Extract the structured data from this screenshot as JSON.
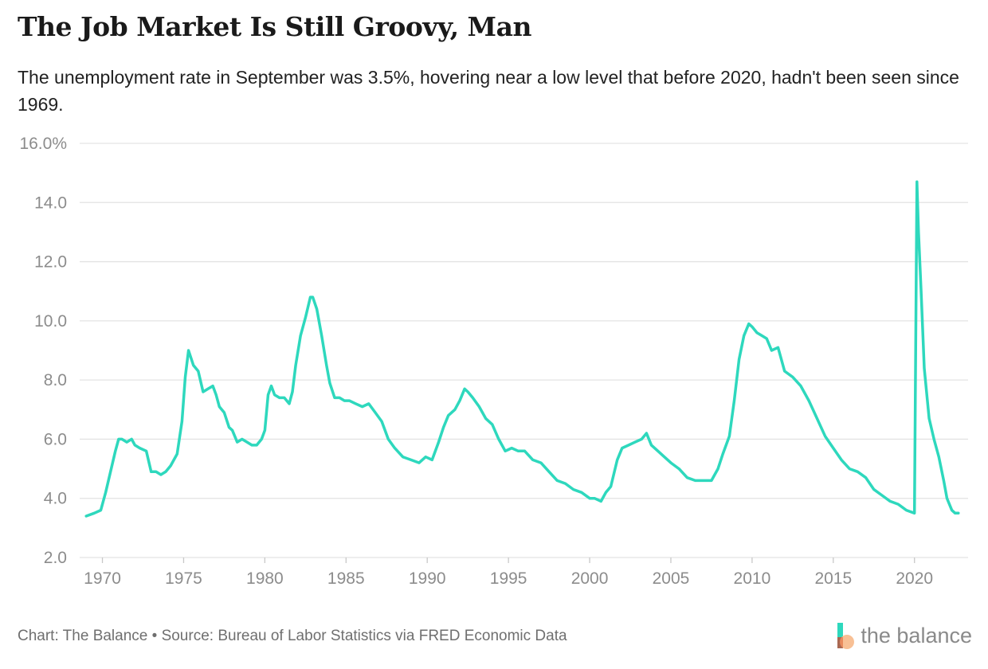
{
  "title": "The Job Market Is Still Groovy, Man",
  "subtitle": "The unemployment rate in September was 3.5%, hovering near a low level that before 2020, hadn't been seen since 1969.",
  "footer": "Chart: The Balance • Source: Bureau of Labor Statistics via FRED Economic Data",
  "logo_text": "the balance",
  "colors": {
    "line": "#2ed8bd",
    "grid": "#e3e3e3",
    "tick": "#8c8c8c"
  },
  "chart_data": {
    "type": "line",
    "title": "The Job Market Is Still Groovy, Man",
    "xlabel": "",
    "ylabel": "",
    "xlim": [
      1968.6,
      2023.3
    ],
    "ylim": [
      2,
      16
    ],
    "y_ticks": [
      2,
      4,
      6,
      8,
      10,
      12,
      14,
      16
    ],
    "y_tick_labels": [
      "2.0",
      "4.0",
      "6.0",
      "8.0",
      "10.0",
      "12.0",
      "14.0",
      "16.0%"
    ],
    "x_ticks": [
      1970,
      1975,
      1980,
      1985,
      1990,
      1995,
      2000,
      2005,
      2010,
      2015,
      2020
    ],
    "x_tick_labels": [
      "1970",
      "1975",
      "1980",
      "1985",
      "1990",
      "1995",
      "2000",
      "2005",
      "2010",
      "2015",
      "2020"
    ],
    "grid": true,
    "series": [
      {
        "name": "Unemployment rate",
        "x": [
          1969.0,
          1969.5,
          1969.9,
          1970.2,
          1970.5,
          1970.8,
          1971.0,
          1971.2,
          1971.5,
          1971.8,
          1972.0,
          1972.3,
          1972.7,
          1973.0,
          1973.3,
          1973.6,
          1973.9,
          1974.2,
          1974.6,
          1974.9,
          1975.1,
          1975.3,
          1975.6,
          1975.9,
          1976.2,
          1976.5,
          1976.8,
          1977.0,
          1977.2,
          1977.5,
          1977.8,
          1978.0,
          1978.3,
          1978.6,
          1978.9,
          1979.2,
          1979.5,
          1979.8,
          1980.0,
          1980.2,
          1980.4,
          1980.6,
          1980.9,
          1981.2,
          1981.5,
          1981.7,
          1981.9,
          1982.2,
          1982.5,
          1982.8,
          1982.95,
          1983.2,
          1983.5,
          1983.8,
          1984.0,
          1984.3,
          1984.6,
          1984.9,
          1985.2,
          1985.6,
          1986.0,
          1986.4,
          1986.8,
          1987.2,
          1987.6,
          1988.0,
          1988.5,
          1989.0,
          1989.5,
          1989.9,
          1990.3,
          1990.7,
          1991.0,
          1991.3,
          1991.7,
          1992.0,
          1992.3,
          1992.5,
          1992.8,
          1993.2,
          1993.6,
          1994.0,
          1994.4,
          1994.8,
          1995.2,
          1995.6,
          1996.0,
          1996.5,
          1997.0,
          1997.5,
          1998.0,
          1998.5,
          1999.0,
          1999.5,
          2000.0,
          2000.3,
          2000.7,
          2001.0,
          2001.3,
          2001.7,
          2002.0,
          2002.4,
          2002.8,
          2003.2,
          2003.5,
          2003.8,
          2004.2,
          2004.6,
          2005.0,
          2005.5,
          2006.0,
          2006.5,
          2007.0,
          2007.5,
          2007.9,
          2008.2,
          2008.6,
          2008.9,
          2009.2,
          2009.5,
          2009.8,
          2010.0,
          2010.3,
          2010.6,
          2010.9,
          2011.2,
          2011.6,
          2012.0,
          2012.5,
          2013.0,
          2013.5,
          2014.0,
          2014.5,
          2015.0,
          2015.5,
          2016.0,
          2016.5,
          2017.0,
          2017.5,
          2018.0,
          2018.5,
          2019.0,
          2019.5,
          2020.0,
          2020.15,
          2020.25,
          2020.4,
          2020.6,
          2020.9,
          2021.2,
          2021.5,
          2021.8,
          2022.0,
          2022.3,
          2022.5,
          2022.7
        ],
        "values": [
          3.4,
          3.5,
          3.6,
          4.2,
          4.9,
          5.6,
          6.0,
          6.0,
          5.9,
          6.0,
          5.8,
          5.7,
          5.6,
          4.9,
          4.9,
          4.8,
          4.9,
          5.1,
          5.5,
          6.6,
          8.1,
          9.0,
          8.5,
          8.3,
          7.6,
          7.7,
          7.8,
          7.5,
          7.1,
          6.9,
          6.4,
          6.3,
          5.9,
          6.0,
          5.9,
          5.8,
          5.8,
          6.0,
          6.3,
          7.5,
          7.8,
          7.5,
          7.4,
          7.4,
          7.2,
          7.6,
          8.5,
          9.5,
          10.1,
          10.8,
          10.8,
          10.4,
          9.5,
          8.5,
          7.9,
          7.4,
          7.4,
          7.3,
          7.3,
          7.2,
          7.1,
          7.2,
          6.9,
          6.6,
          6.0,
          5.7,
          5.4,
          5.3,
          5.2,
          5.4,
          5.3,
          5.9,
          6.4,
          6.8,
          7.0,
          7.3,
          7.7,
          7.6,
          7.4,
          7.1,
          6.7,
          6.5,
          6.0,
          5.6,
          5.7,
          5.6,
          5.6,
          5.3,
          5.2,
          4.9,
          4.6,
          4.5,
          4.3,
          4.2,
          4.0,
          4.0,
          3.9,
          4.2,
          4.4,
          5.3,
          5.7,
          5.8,
          5.9,
          6.0,
          6.2,
          5.8,
          5.6,
          5.4,
          5.2,
          5.0,
          4.7,
          4.6,
          4.6,
          4.6,
          5.0,
          5.5,
          6.1,
          7.3,
          8.7,
          9.5,
          9.9,
          9.8,
          9.6,
          9.5,
          9.4,
          9.0,
          9.1,
          8.3,
          8.1,
          7.8,
          7.3,
          6.7,
          6.1,
          5.7,
          5.3,
          5.0,
          4.9,
          4.7,
          4.3,
          4.1,
          3.9,
          3.8,
          3.6,
          3.5,
          14.7,
          13.0,
          11.1,
          8.4,
          6.7,
          6.0,
          5.4,
          4.6,
          4.0,
          3.6,
          3.5,
          3.5
        ]
      }
    ]
  }
}
